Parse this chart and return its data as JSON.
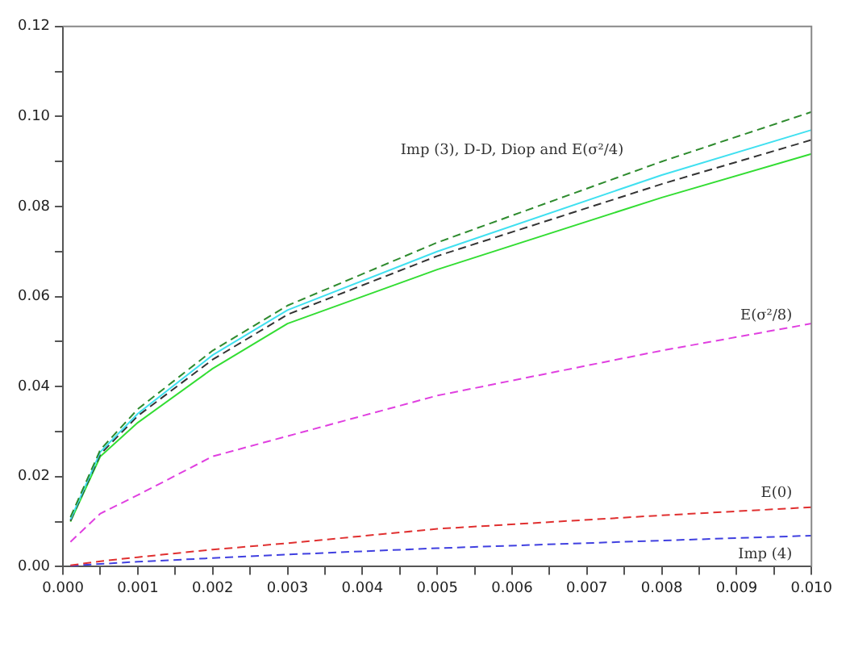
{
  "chart_data": {
    "type": "line",
    "x": [
      0.0001,
      0.0005,
      0.001,
      0.002,
      0.003,
      0.005,
      0.008,
      0.01
    ],
    "series": [
      {
        "color": "#2e8b2e",
        "line_style": "dashed",
        "values": [
          0.011,
          0.026,
          0.035,
          0.048,
          0.058,
          0.072,
          0.09,
          0.101
        ]
      },
      {
        "color": "#40e0f0",
        "line_style": "solid",
        "values": [
          0.0105,
          0.0255,
          0.034,
          0.047,
          0.057,
          0.07,
          0.087,
          0.097
        ]
      },
      {
        "color": "#333333",
        "line_style": "dashed",
        "values": [
          0.0102,
          0.025,
          0.0335,
          0.046,
          0.056,
          0.069,
          0.085,
          0.0948
        ]
      },
      {
        "color": "#33dd33",
        "line_style": "solid",
        "values": [
          0.01,
          0.0245,
          0.032,
          0.044,
          0.054,
          0.066,
          0.082,
          0.0917
        ]
      },
      {
        "name": "E(σ²/8)",
        "color": "#e040e0",
        "line_style": "dashed",
        "values": [
          0.0055,
          0.0118,
          0.0159,
          0.0245,
          0.029,
          0.038,
          0.048,
          0.054
        ]
      },
      {
        "name": "E(0)",
        "color": "#e03030",
        "line_style": "dashed",
        "values": [
          0.0003,
          0.0012,
          0.0021,
          0.0038,
          0.0052,
          0.0084,
          0.0114,
          0.0132
        ]
      },
      {
        "name": "Imp (4)",
        "color": "#4040e0",
        "line_style": "dashed",
        "values": [
          0.0002,
          0.0006,
          0.0011,
          0.0019,
          0.0027,
          0.0041,
          0.0058,
          0.0069
        ]
      }
    ],
    "xlim": [
      0,
      0.01
    ],
    "xticks": [
      {
        "value": 0,
        "label": "0.000"
      },
      {
        "value": 0.0005,
        "label": null
      },
      {
        "value": 0.001,
        "label": "0.001"
      },
      {
        "value": 0.0015,
        "label": null
      },
      {
        "value": 0.002,
        "label": "0.002"
      },
      {
        "value": 0.0025,
        "label": null
      },
      {
        "value": 0.003,
        "label": "0.003"
      },
      {
        "value": 0.0035,
        "label": null
      },
      {
        "value": 0.004,
        "label": "0.004"
      },
      {
        "value": 0.0045,
        "label": null
      },
      {
        "value": 0.005,
        "label": "0.005"
      },
      {
        "value": 0.0055,
        "label": null
      },
      {
        "value": 0.006,
        "label": "0.006"
      },
      {
        "value": 0.0065,
        "label": null
      },
      {
        "value": 0.007,
        "label": "0.007"
      },
      {
        "value": 0.0075,
        "label": null
      },
      {
        "value": 0.008,
        "label": "0.008"
      },
      {
        "value": 0.0085,
        "label": null
      },
      {
        "value": 0.009,
        "label": "0.009"
      },
      {
        "value": 0.0095,
        "label": null
      },
      {
        "value": 0.01,
        "label": "0.010"
      }
    ],
    "ylim": [
      0,
      0.12
    ],
    "yticks": [
      {
        "value": 0,
        "label": "0.00"
      },
      {
        "value": 0.01,
        "label": null
      },
      {
        "value": 0.02,
        "label": "0.02"
      },
      {
        "value": 0.03,
        "label": null
      },
      {
        "value": 0.04,
        "label": "0.04"
      },
      {
        "value": 0.05,
        "label": null
      },
      {
        "value": 0.06,
        "label": "0.06"
      },
      {
        "value": 0.07,
        "label": null
      },
      {
        "value": 0.08,
        "label": "0.08"
      },
      {
        "value": 0.09,
        "label": null
      },
      {
        "value": 0.1,
        "label": "0.10"
      },
      {
        "value": 0.11,
        "label": null
      },
      {
        "value": 0.12,
        "label": "0.12"
      }
    ],
    "grid": false,
    "legend": false,
    "marker": "none",
    "annotations": [
      "Imp (3), D-D, Diop and E(σ²/4)"
    ]
  }
}
